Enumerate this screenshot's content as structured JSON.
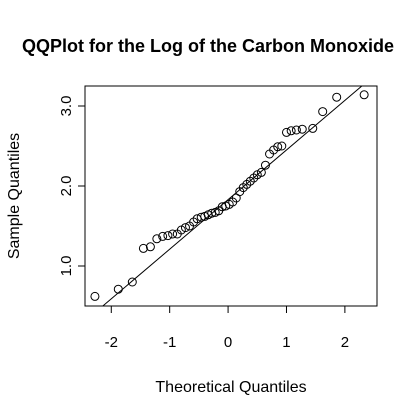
{
  "chart_data": {
    "type": "scatter",
    "title": "QQPlot for the Log of the Carbon Monoxide",
    "xlabel": "Theoretical Quantiles",
    "ylabel": "Sample Quantiles",
    "xlim": [
      -2.45,
      2.55
    ],
    "ylim": [
      0.5,
      3.25
    ],
    "x_ticks": [
      -2,
      -1,
      0,
      1,
      2
    ],
    "x_tick_labels": [
      "-2",
      "-1",
      "0",
      "1",
      "2"
    ],
    "y_ticks": [
      1.0,
      2.0,
      3.0
    ],
    "y_tick_labels": [
      "1.0",
      "2.0",
      "3.0"
    ],
    "grid": false,
    "reference_line": {
      "intercept": 1.83,
      "slope": 0.62
    },
    "points": [
      {
        "x": -2.28,
        "y": 0.62
      },
      {
        "x": -1.88,
        "y": 0.71
      },
      {
        "x": -1.64,
        "y": 0.8
      },
      {
        "x": -1.45,
        "y": 1.22
      },
      {
        "x": -1.33,
        "y": 1.24
      },
      {
        "x": -1.22,
        "y": 1.34
      },
      {
        "x": -1.12,
        "y": 1.37
      },
      {
        "x": -1.03,
        "y": 1.38
      },
      {
        "x": -0.95,
        "y": 1.4
      },
      {
        "x": -0.87,
        "y": 1.4
      },
      {
        "x": -0.8,
        "y": 1.45
      },
      {
        "x": -0.73,
        "y": 1.48
      },
      {
        "x": -0.66,
        "y": 1.5
      },
      {
        "x": -0.59,
        "y": 1.55
      },
      {
        "x": -0.53,
        "y": 1.59
      },
      {
        "x": -0.46,
        "y": 1.61
      },
      {
        "x": -0.4,
        "y": 1.62
      },
      {
        "x": -0.34,
        "y": 1.64
      },
      {
        "x": -0.28,
        "y": 1.66
      },
      {
        "x": -0.22,
        "y": 1.67
      },
      {
        "x": -0.16,
        "y": 1.69
      },
      {
        "x": -0.1,
        "y": 1.74
      },
      {
        "x": -0.04,
        "y": 1.75
      },
      {
        "x": 0.02,
        "y": 1.77
      },
      {
        "x": 0.08,
        "y": 1.8
      },
      {
        "x": 0.14,
        "y": 1.85
      },
      {
        "x": 0.2,
        "y": 1.93
      },
      {
        "x": 0.26,
        "y": 1.98
      },
      {
        "x": 0.32,
        "y": 2.02
      },
      {
        "x": 0.38,
        "y": 2.06
      },
      {
        "x": 0.44,
        "y": 2.1
      },
      {
        "x": 0.5,
        "y": 2.14
      },
      {
        "x": 0.57,
        "y": 2.17
      },
      {
        "x": 0.64,
        "y": 2.26
      },
      {
        "x": 0.71,
        "y": 2.4
      },
      {
        "x": 0.78,
        "y": 2.45
      },
      {
        "x": 0.85,
        "y": 2.49
      },
      {
        "x": 0.92,
        "y": 2.5
      },
      {
        "x": 1.0,
        "y": 2.67
      },
      {
        "x": 1.08,
        "y": 2.69
      },
      {
        "x": 1.17,
        "y": 2.7
      },
      {
        "x": 1.27,
        "y": 2.71
      },
      {
        "x": 1.45,
        "y": 2.72
      },
      {
        "x": 1.62,
        "y": 2.93
      },
      {
        "x": 1.86,
        "y": 3.11
      },
      {
        "x": 2.33,
        "y": 3.14
      }
    ]
  }
}
